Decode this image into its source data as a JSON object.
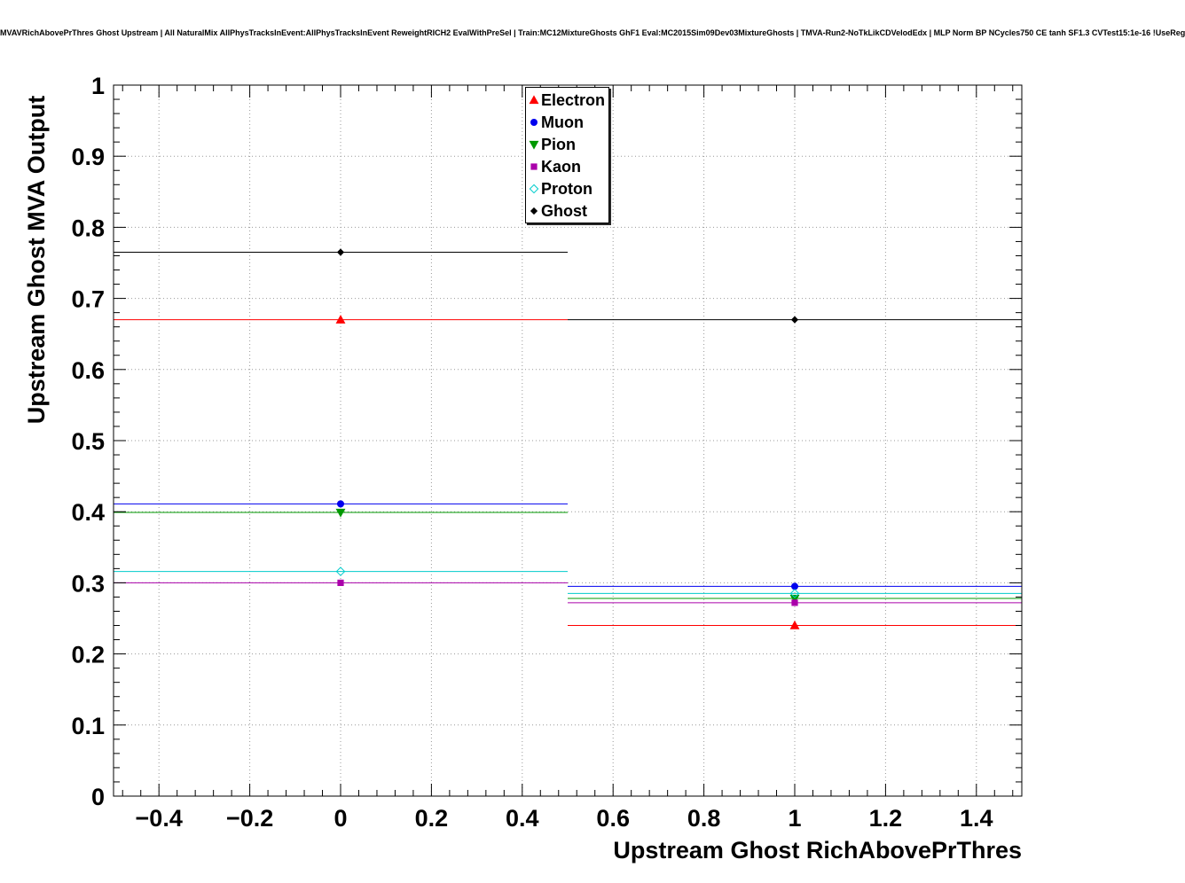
{
  "page": {
    "title": "MVAVRichAbovePrThres Ghost Upstream | All NaturalMix AllPhysTracksInEvent:AllPhysTracksInEvent ReweightRICH2 EvalWithPreSel | Train:MC12MixtureGhosts GhF1 Eval:MC2015Sim09Dev03MixtureGhosts | TMVA-Run2-NoTkLikCDVelodEdx | MLP Norm BP NCycles750 CE tanh SF1.3 CVTest15:1e-16 !UseReg"
  },
  "chart_data": {
    "type": "line",
    "title": "MVAVRichAbovePrThres Ghost Upstream | All NaturalMix AllPhysTracksInEvent:AllPhysTracksInEvent ReweightRICH2 EvalWithPreSel | Train:MC12MixtureGhosts GhF1 Eval:MC2015Sim09Dev03MixtureGhosts | TMVA-Run2-NoTkLikCDVelodEdx | MLP Norm BP NCycles750 CE tanh SF1.3 CVTest15:1e-16 !UseReg",
    "xlabel": "Upstream Ghost RichAbovePrThres",
    "ylabel": "Upstream Ghost MVA Output",
    "x_range": [
      -0.5,
      1.5
    ],
    "y_range": [
      0,
      1
    ],
    "x_ticks": [
      -0.4,
      -0.2,
      0,
      0.2,
      0.4,
      0.6,
      0.8,
      1,
      1.2,
      1.4
    ],
    "x_tick_labels": [
      "−0.4",
      "−0.2",
      "0",
      "0.2",
      "0.4",
      "0.6",
      "0.8",
      "1",
      "1.2",
      "1.4"
    ],
    "y_ticks": [
      0,
      0.1,
      0.2,
      0.3,
      0.4,
      0.5,
      0.6,
      0.7,
      0.8,
      0.9,
      1
    ],
    "y_tick_labels": [
      "0",
      "0.1",
      "0.2",
      "0.3",
      "0.4",
      "0.5",
      "0.6",
      "0.7",
      "0.8",
      "0.9",
      "1"
    ],
    "grid": true,
    "legend_position": "top-center",
    "bin_edges": [
      -0.5,
      0.5,
      1.5
    ],
    "bin_centers": [
      0,
      1
    ],
    "series": [
      {
        "name": "Electron",
        "color": "#ff0000",
        "marker": "triangle-up",
        "values": [
          0.67,
          0.24
        ]
      },
      {
        "name": "Muon",
        "color": "#0000ee",
        "marker": "circle",
        "values": [
          0.411,
          0.295
        ]
      },
      {
        "name": "Pion",
        "color": "#009900",
        "marker": "triangle-down",
        "values": [
          0.399,
          0.278
        ]
      },
      {
        "name": "Kaon",
        "color": "#aa00aa",
        "marker": "square",
        "values": [
          0.3,
          0.272
        ]
      },
      {
        "name": "Proton",
        "color": "#00cccc",
        "marker": "diamond-open",
        "values": [
          0.316,
          0.285
        ]
      },
      {
        "name": "Ghost",
        "color": "#000000",
        "marker": "diamond",
        "values": [
          0.765,
          0.67
        ]
      }
    ]
  }
}
